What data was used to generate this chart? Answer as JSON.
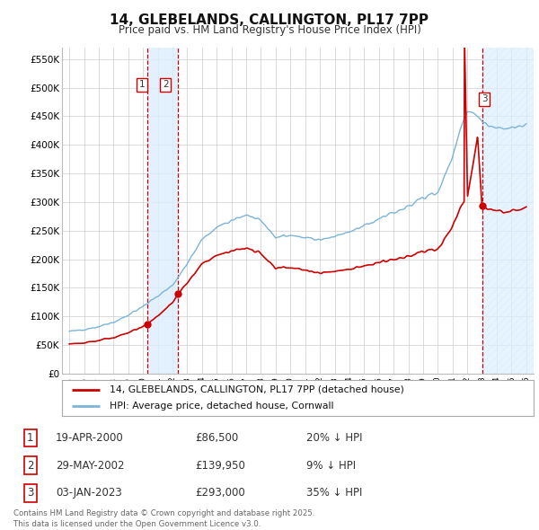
{
  "title": "14, GLEBELANDS, CALLINGTON, PL17 7PP",
  "subtitle": "Price paid vs. HM Land Registry's House Price Index (HPI)",
  "ylim": [
    0,
    570000
  ],
  "yticks": [
    0,
    50000,
    100000,
    150000,
    200000,
    250000,
    300000,
    350000,
    400000,
    450000,
    500000,
    550000
  ],
  "ytick_labels": [
    "£0",
    "£50K",
    "£100K",
    "£150K",
    "£200K",
    "£250K",
    "£300K",
    "£350K",
    "£400K",
    "£450K",
    "£500K",
    "£550K"
  ],
  "sale_prices": [
    86500,
    139950,
    293000
  ],
  "legend_entries": [
    "14, GLEBELANDS, CALLINGTON, PL17 7PP (detached house)",
    "HPI: Average price, detached house, Cornwall"
  ],
  "table_rows": [
    [
      "1",
      "19-APR-2000",
      "£86,500",
      "20% ↓ HPI"
    ],
    [
      "2",
      "29-MAY-2002",
      "£139,950",
      "9% ↓ HPI"
    ],
    [
      "3",
      "03-JAN-2023",
      "£293,000",
      "35% ↓ HPI"
    ]
  ],
  "footnote": "Contains HM Land Registry data © Crown copyright and database right 2025.\nThis data is licensed under the Open Government Licence v3.0.",
  "hpi_color": "#7ab4d8",
  "price_color": "#cc0000",
  "vline_color": "#cc0000",
  "shade_color": "#ddeeff",
  "hatch_color": "#ddeeff",
  "background_color": "#ffffff"
}
